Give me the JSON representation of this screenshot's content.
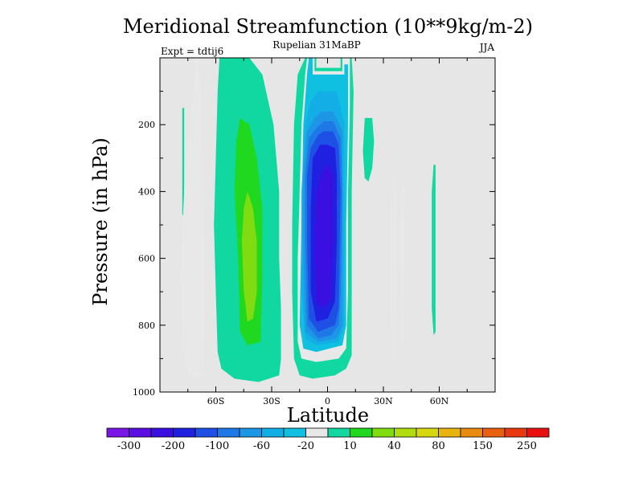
{
  "chart_data": {
    "type": "heatmap",
    "subtype": "filled-contour",
    "title": "Meridional Streamfunction (10**9kg/m-2)",
    "center_label": "Rupelian  31MaBP",
    "left_label": "Expt = tdtij6",
    "right_label": "JJA",
    "xlabel": "Latitude",
    "ylabel": "Pressure (in hPa)",
    "xlim": [
      -90,
      90
    ],
    "ylim": [
      1000,
      0
    ],
    "x_ticks": [
      {
        "value": -60,
        "label": "60S"
      },
      {
        "value": -30,
        "label": "30S"
      },
      {
        "value": 0,
        "label": "0"
      },
      {
        "value": 30,
        "label": "30N"
      },
      {
        "value": 60,
        "label": "60N"
      }
    ],
    "y_ticks": [
      {
        "value": 200,
        "label": "200"
      },
      {
        "value": 400,
        "label": "400"
      },
      {
        "value": 600,
        "label": "600"
      },
      {
        "value": 800,
        "label": "800"
      },
      {
        "value": 1000,
        "label": "1000"
      }
    ],
    "background_color": "#e6e6e6",
    "colorbar": {
      "levels": [
        -300,
        -250,
        -200,
        -150,
        -100,
        -80,
        -60,
        -40,
        -20,
        -10,
        10,
        20,
        40,
        60,
        80,
        100,
        150,
        200,
        250,
        300
      ],
      "labels": [
        {
          "after_level": -300,
          "text": "-300"
        },
        {
          "after_level": -200,
          "text": "-200"
        },
        {
          "after_level": -100,
          "text": "-100"
        },
        {
          "after_level": -60,
          "text": "-60"
        },
        {
          "after_level": -20,
          "text": "-20"
        },
        {
          "after_level": 10,
          "text": "10"
        },
        {
          "after_level": 40,
          "text": "40"
        },
        {
          "after_level": 80,
          "text": "80"
        },
        {
          "after_level": 150,
          "text": "150"
        },
        {
          "after_level": 250,
          "text": "250"
        }
      ],
      "colors": [
        "#7a16e6",
        "#5a0fe0",
        "#3a10e0",
        "#2020e0",
        "#1e50e6",
        "#1e78e6",
        "#1e96e6",
        "#14aee6",
        "#10c0e0",
        "#e8e8e8",
        "#10d8a0",
        "#20d820",
        "#80dc10",
        "#b0dc10",
        "#d8d810",
        "#e8b410",
        "#e88a10",
        "#e86010",
        "#e83810",
        "#e81010"
      ]
    },
    "contour_regions": [
      {
        "value": 10,
        "points": [
          [
            -78,
            15
          ],
          [
            -77,
            15
          ],
          [
            -77,
            47
          ],
          [
            -78,
            47
          ]
        ]
      },
      {
        "value": 10,
        "points": [
          [
            -53,
            0
          ],
          [
            -42,
            0
          ],
          [
            -35,
            5
          ],
          [
            -29,
            20
          ],
          [
            -26,
            40
          ],
          [
            -26,
            60
          ],
          [
            -25,
            75
          ],
          [
            -25,
            90
          ],
          [
            -26,
            95
          ],
          [
            -37,
            97
          ],
          [
            -50,
            96
          ],
          [
            -57,
            93
          ],
          [
            -59,
            88
          ],
          [
            -60,
            70
          ],
          [
            -61,
            50
          ],
          [
            -60,
            30
          ],
          [
            -59,
            10
          ],
          [
            -58,
            0
          ]
        ]
      },
      {
        "value": 10,
        "points": [
          [
            -12,
            0
          ],
          [
            -6,
            0
          ],
          [
            -6,
            3
          ],
          [
            7,
            3
          ],
          [
            7,
            0
          ],
          [
            13,
            0
          ],
          [
            14,
            10
          ],
          [
            13,
            40
          ],
          [
            13,
            70
          ],
          [
            13,
            89
          ],
          [
            10,
            93
          ],
          [
            4,
            95
          ],
          [
            -8,
            96
          ],
          [
            -15,
            95
          ],
          [
            -18,
            90
          ],
          [
            -19,
            70
          ],
          [
            -19,
            50
          ],
          [
            -18,
            20
          ],
          [
            -16,
            5
          ]
        ]
      },
      {
        "value": 10,
        "points": [
          [
            20,
            18
          ],
          [
            24,
            18
          ],
          [
            25,
            25
          ],
          [
            24,
            33
          ],
          [
            22,
            37
          ],
          [
            20,
            36
          ],
          [
            19,
            28
          ]
        ]
      },
      {
        "value": 10,
        "points": [
          [
            57,
            32
          ],
          [
            58,
            32
          ],
          [
            58,
            82
          ],
          [
            57,
            83
          ],
          [
            56,
            75
          ],
          [
            56,
            40
          ]
        ]
      },
      {
        "value": -10,
        "points": [
          [
            -71,
            0
          ],
          [
            -69,
            0
          ],
          [
            -68,
            10
          ],
          [
            -67,
            40
          ],
          [
            -66,
            60
          ],
          [
            -66,
            80
          ],
          [
            -67,
            95
          ],
          [
            -70,
            96
          ],
          [
            -73,
            96
          ],
          [
            -76,
            92
          ],
          [
            -78,
            85
          ],
          [
            -79,
            65
          ],
          [
            -77,
            40
          ],
          [
            -75,
            25
          ],
          [
            -72,
            10
          ]
        ]
      },
      {
        "value": -10,
        "points": [
          [
            -11,
            0
          ],
          [
            -7,
            0
          ],
          [
            -7,
            4
          ],
          [
            8,
            4
          ],
          [
            8,
            0
          ],
          [
            12,
            0
          ],
          [
            12,
            15
          ],
          [
            11,
            40
          ],
          [
            11,
            70
          ],
          [
            10,
            87
          ],
          [
            6,
            90
          ],
          [
            -6,
            91
          ],
          [
            -14,
            90
          ],
          [
            -16,
            85
          ],
          [
            -16,
            60
          ],
          [
            -15,
            40
          ],
          [
            -14,
            20
          ],
          [
            -12,
            5
          ]
        ]
      },
      {
        "value": -10,
        "points": [
          [
            35,
            35
          ],
          [
            36,
            35
          ],
          [
            37,
            40
          ],
          [
            37,
            75
          ],
          [
            36,
            90
          ],
          [
            35,
            90
          ],
          [
            34,
            75
          ],
          [
            34,
            45
          ]
        ]
      },
      {
        "value": -10,
        "points": [
          [
            40,
            38
          ],
          [
            41,
            38
          ],
          [
            42,
            45
          ],
          [
            41,
            85
          ],
          [
            40,
            87
          ],
          [
            39,
            75
          ],
          [
            39,
            50
          ]
        ]
      },
      {
        "value": -20,
        "points": [
          [
            -10,
            0
          ],
          [
            -8,
            0
          ],
          [
            -8,
            5
          ],
          [
            9,
            5
          ],
          [
            9,
            2
          ],
          [
            11,
            2
          ],
          [
            11,
            20
          ],
          [
            10,
            50
          ],
          [
            10,
            80
          ],
          [
            8,
            86
          ],
          [
            -6,
            88
          ],
          [
            -13,
            87
          ],
          [
            -15,
            80
          ],
          [
            -14,
            50
          ],
          [
            -13,
            20
          ],
          [
            -11,
            5
          ]
        ]
      },
      {
        "value": -40,
        "points": [
          [
            -5,
            10
          ],
          [
            5,
            10
          ],
          [
            9,
            20
          ],
          [
            9,
            50
          ],
          [
            9,
            80
          ],
          [
            6,
            85
          ],
          [
            -6,
            86
          ],
          [
            -12,
            84
          ],
          [
            -14,
            70
          ],
          [
            -14,
            40
          ],
          [
            -12,
            20
          ],
          [
            -9,
            13
          ]
        ]
      },
      {
        "value": -60,
        "points": [
          [
            -3,
            16
          ],
          [
            3,
            16
          ],
          [
            8,
            22
          ],
          [
            8,
            50
          ],
          [
            8,
            80
          ],
          [
            5,
            84
          ],
          [
            -5,
            85
          ],
          [
            -12,
            82
          ],
          [
            -13,
            60
          ],
          [
            -13,
            35
          ],
          [
            -11,
            22
          ],
          [
            -7,
            18
          ]
        ]
      },
      {
        "value": -80,
        "points": [
          [
            -2,
            19
          ],
          [
            3,
            19
          ],
          [
            7,
            24
          ],
          [
            8,
            40
          ],
          [
            7,
            70
          ],
          [
            6,
            80
          ],
          [
            2,
            83
          ],
          [
            -5,
            84
          ],
          [
            -11,
            80
          ],
          [
            -12,
            55
          ],
          [
            -12,
            35
          ],
          [
            -10,
            24
          ],
          [
            -6,
            21
          ]
        ]
      },
      {
        "value": -100,
        "points": [
          [
            -2,
            22
          ],
          [
            3,
            22
          ],
          [
            6,
            26
          ],
          [
            7,
            40
          ],
          [
            6,
            75
          ],
          [
            4,
            80
          ],
          [
            -5,
            82
          ],
          [
            -10,
            78
          ],
          [
            -11,
            55
          ],
          [
            -11,
            35
          ],
          [
            -9,
            27
          ],
          [
            -5,
            23
          ]
        ]
      },
      {
        "value": -150,
        "points": [
          [
            0,
            26
          ],
          [
            4,
            27
          ],
          [
            5,
            35
          ],
          [
            5,
            55
          ],
          [
            4,
            73
          ],
          [
            0,
            78
          ],
          [
            -6,
            79
          ],
          [
            -9,
            70
          ],
          [
            -9,
            45
          ],
          [
            -8,
            30
          ],
          [
            -4,
            26
          ]
        ]
      },
      {
        "value": -200,
        "points": [
          [
            0,
            32
          ],
          [
            3,
            35
          ],
          [
            3,
            55
          ],
          [
            2,
            72
          ],
          [
            -2,
            75
          ],
          [
            -6,
            73
          ],
          [
            -7,
            55
          ],
          [
            -6,
            40
          ],
          [
            -3,
            34
          ]
        ]
      },
      {
        "value": 20,
        "points": [
          [
            -47,
            18
          ],
          [
            -42,
            20
          ],
          [
            -38,
            30
          ],
          [
            -35,
            45
          ],
          [
            -35,
            65
          ],
          [
            -36,
            85
          ],
          [
            -43,
            86
          ],
          [
            -47,
            82
          ],
          [
            -48,
            60
          ],
          [
            -50,
            40
          ],
          [
            -49,
            25
          ]
        ]
      },
      {
        "value": 40,
        "points": [
          [
            -43,
            40
          ],
          [
            -40,
            45
          ],
          [
            -38,
            55
          ],
          [
            -38,
            70
          ],
          [
            -40,
            78
          ],
          [
            -43,
            79
          ],
          [
            -45,
            70
          ],
          [
            -46,
            55
          ],
          [
            -45,
            45
          ]
        ]
      }
    ]
  }
}
